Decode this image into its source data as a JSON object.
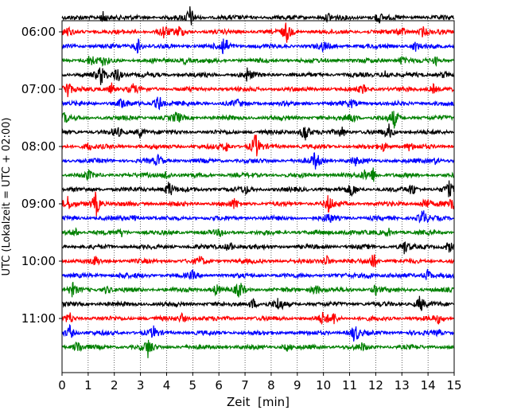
{
  "chart_data": {
    "type": "line",
    "title": "",
    "xlabel": "Zeit  [min]",
    "ylabel": "UTC (Lokalzeit = UTC + 02:00)",
    "xlim": [
      0,
      15
    ],
    "x_ticks": [
      "0",
      "1",
      "2",
      "3",
      "4",
      "5",
      "6",
      "7",
      "8",
      "9",
      "10",
      "11",
      "12",
      "13",
      "14",
      "15"
    ],
    "y_ticks": [
      "06:00",
      "07:00",
      "08:00",
      "09:00",
      "10:00",
      "11:00"
    ],
    "grid": "vertical dotted lines at each minute",
    "trace_colors": [
      "#000000",
      "#ff0000",
      "#0000ff",
      "#008000"
    ],
    "traces": [
      {
        "start": "05:45",
        "events": [
          {
            "t": 1.6,
            "a": 1.0
          },
          {
            "t": 4.9,
            "a": 1.6
          },
          {
            "t": 10.2,
            "a": 0.6
          },
          {
            "t": 12.1,
            "a": 0.9
          }
        ]
      },
      {
        "start": "06:00",
        "events": [
          {
            "t": 0.2,
            "a": 0.6
          },
          {
            "t": 3.9,
            "a": 1.1
          },
          {
            "t": 4.5,
            "a": 0.8
          },
          {
            "t": 8.6,
            "a": 1.5
          },
          {
            "t": 13.0,
            "a": 0.7
          },
          {
            "t": 13.8,
            "a": 0.7
          }
        ]
      },
      {
        "start": "06:15",
        "events": [
          {
            "t": 2.9,
            "a": 1.1
          },
          {
            "t": 6.2,
            "a": 1.8
          },
          {
            "t": 10.0,
            "a": 0.6
          },
          {
            "t": 13.5,
            "a": 0.7
          }
        ]
      },
      {
        "start": "06:30",
        "events": [
          {
            "t": 1.1,
            "a": 0.9
          },
          {
            "t": 1.6,
            "a": 0.6
          },
          {
            "t": 4.7,
            "a": 0.5
          },
          {
            "t": 13.0,
            "a": 0.6
          },
          {
            "t": 14.3,
            "a": 0.5
          }
        ]
      },
      {
        "start": "06:45",
        "events": [
          {
            "t": 1.5,
            "a": 1.5
          },
          {
            "t": 2.1,
            "a": 1.4
          },
          {
            "t": 7.1,
            "a": 1.0
          },
          {
            "t": 12.4,
            "a": 0.8
          },
          {
            "t": 14.6,
            "a": 0.5
          }
        ]
      },
      {
        "start": "07:00",
        "events": [
          {
            "t": 0.2,
            "a": 1.6
          },
          {
            "t": 1.9,
            "a": 0.8
          },
          {
            "t": 2.7,
            "a": 0.7
          },
          {
            "t": 11.5,
            "a": 0.6
          },
          {
            "t": 14.2,
            "a": 0.7
          }
        ]
      },
      {
        "start": "07:15",
        "events": [
          {
            "t": 2.3,
            "a": 0.8
          },
          {
            "t": 3.7,
            "a": 1.3
          },
          {
            "t": 6.7,
            "a": 0.5
          },
          {
            "t": 11.1,
            "a": 0.5
          }
        ]
      },
      {
        "start": "07:30",
        "events": [
          {
            "t": 0.1,
            "a": 0.7
          },
          {
            "t": 4.4,
            "a": 0.9
          },
          {
            "t": 11.1,
            "a": 0.8
          },
          {
            "t": 12.7,
            "a": 1.3
          }
        ]
      },
      {
        "start": "07:45",
        "events": [
          {
            "t": 2.1,
            "a": 0.7
          },
          {
            "t": 3.0,
            "a": 0.9
          },
          {
            "t": 9.3,
            "a": 1.6
          },
          {
            "t": 10.7,
            "a": 0.8
          },
          {
            "t": 12.5,
            "a": 1.0
          }
        ]
      },
      {
        "start": "08:00",
        "events": [
          {
            "t": 1.0,
            "a": 0.6
          },
          {
            "t": 6.3,
            "a": 0.7
          },
          {
            "t": 7.4,
            "a": 1.9
          },
          {
            "t": 12.3,
            "a": 0.6
          },
          {
            "t": 13.3,
            "a": 0.6
          }
        ]
      },
      {
        "start": "08:15",
        "events": [
          {
            "t": 3.7,
            "a": 0.8
          },
          {
            "t": 9.7,
            "a": 1.4
          },
          {
            "t": 11.2,
            "a": 0.6
          },
          {
            "t": 14.3,
            "a": 0.5
          }
        ]
      },
      {
        "start": "08:30",
        "events": [
          {
            "t": 1.0,
            "a": 0.6
          },
          {
            "t": 4.0,
            "a": 0.8
          },
          {
            "t": 11.6,
            "a": 0.6
          },
          {
            "t": 11.9,
            "a": 1.0
          }
        ]
      },
      {
        "start": "08:45",
        "events": [
          {
            "t": 4.1,
            "a": 1.3
          },
          {
            "t": 7.0,
            "a": 0.6
          },
          {
            "t": 11.1,
            "a": 1.0
          },
          {
            "t": 13.4,
            "a": 0.9
          },
          {
            "t": 14.8,
            "a": 1.0
          }
        ]
      },
      {
        "start": "09:00",
        "events": [
          {
            "t": 0.2,
            "a": 1.0
          },
          {
            "t": 1.3,
            "a": 2.0
          },
          {
            "t": 6.6,
            "a": 0.7
          },
          {
            "t": 10.2,
            "a": 1.3
          },
          {
            "t": 13.9,
            "a": 1.1
          },
          {
            "t": 14.9,
            "a": 1.2
          }
        ]
      },
      {
        "start": "09:15",
        "events": [
          {
            "t": 2.8,
            "a": 0.6
          },
          {
            "t": 10.2,
            "a": 0.7
          },
          {
            "t": 13.8,
            "a": 1.3
          }
        ]
      },
      {
        "start": "09:30",
        "events": [
          {
            "t": 0.5,
            "a": 0.6
          },
          {
            "t": 2.3,
            "a": 0.5
          },
          {
            "t": 6.1,
            "a": 0.5
          },
          {
            "t": 10.9,
            "a": 0.6
          },
          {
            "t": 12.5,
            "a": 0.5
          }
        ]
      },
      {
        "start": "09:45",
        "events": [
          {
            "t": 6.4,
            "a": 0.9
          },
          {
            "t": 13.1,
            "a": 1.0
          },
          {
            "t": 14.8,
            "a": 0.9
          }
        ]
      },
      {
        "start": "10:00",
        "events": [
          {
            "t": 1.3,
            "a": 0.6
          },
          {
            "t": 5.3,
            "a": 0.6
          },
          {
            "t": 10.1,
            "a": 1.0
          },
          {
            "t": 11.9,
            "a": 1.3
          }
        ]
      },
      {
        "start": "10:15",
        "events": [
          {
            "t": 2.3,
            "a": 0.5
          },
          {
            "t": 5.0,
            "a": 0.5
          },
          {
            "t": 11.7,
            "a": 0.5
          },
          {
            "t": 14.0,
            "a": 1.0
          }
        ]
      },
      {
        "start": "10:30",
        "events": [
          {
            "t": 0.4,
            "a": 0.9
          },
          {
            "t": 1.7,
            "a": 0.6
          },
          {
            "t": 5.9,
            "a": 0.8
          },
          {
            "t": 6.8,
            "a": 1.2
          },
          {
            "t": 9.7,
            "a": 0.9
          },
          {
            "t": 12.0,
            "a": 0.7
          }
        ]
      },
      {
        "start": "10:45",
        "events": [
          {
            "t": 7.3,
            "a": 0.8
          },
          {
            "t": 8.3,
            "a": 1.1
          },
          {
            "t": 13.7,
            "a": 1.3
          }
        ]
      },
      {
        "start": "11:00",
        "events": [
          {
            "t": 0.3,
            "a": 0.8
          },
          {
            "t": 4.6,
            "a": 0.7
          },
          {
            "t": 10.0,
            "a": 0.9
          },
          {
            "t": 10.4,
            "a": 0.8
          },
          {
            "t": 14.4,
            "a": 0.6
          }
        ]
      },
      {
        "start": "11:15",
        "events": [
          {
            "t": 0.3,
            "a": 1.1
          },
          {
            "t": 3.5,
            "a": 0.8
          },
          {
            "t": 11.2,
            "a": 1.5
          },
          {
            "t": 14.4,
            "a": 0.5
          }
        ]
      },
      {
        "start": "11:30",
        "events": [
          {
            "t": 0.6,
            "a": 1.0
          },
          {
            "t": 3.3,
            "a": 1.4
          },
          {
            "t": 8.6,
            "a": 0.5
          },
          {
            "t": 11.5,
            "a": 0.5
          }
        ]
      }
    ]
  }
}
